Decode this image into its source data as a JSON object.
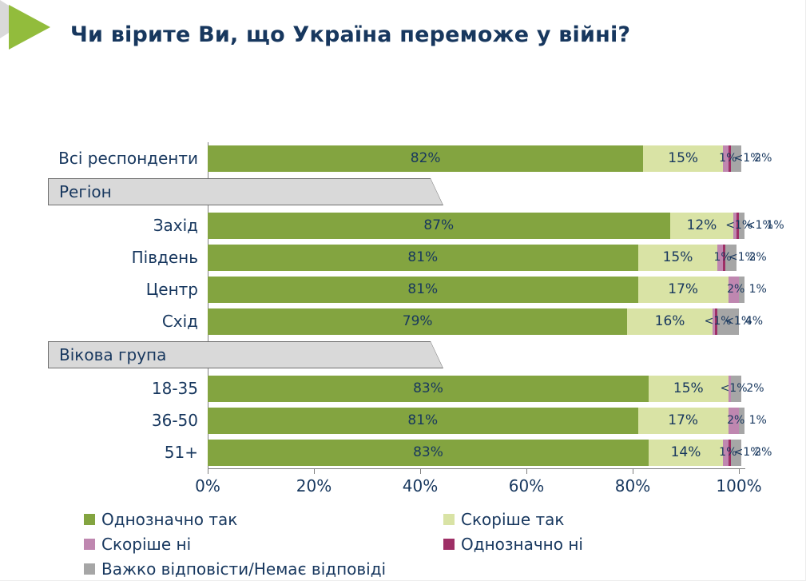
{
  "title": "Чи вірите Ви, що Україна переможе у війні?",
  "colors": {
    "title_text": "#17375e",
    "axis_line": "#7f7f7f",
    "group_box_fill": "#d9d9d9",
    "accent_arrow": "#92bc3c"
  },
  "chart_data": {
    "type": "bar",
    "orientation": "horizontal",
    "stacked": true,
    "xlabel": "",
    "ylabel": "",
    "xlim": [
      0,
      100
    ],
    "xticks": [
      "0%",
      "20%",
      "40%",
      "60%",
      "80%",
      "100%"
    ],
    "legend_position": "bottom",
    "series": [
      {
        "name": "Однозначно так",
        "color": "#83a440"
      },
      {
        "name": "Скоріше так",
        "color": "#d9e3a5"
      },
      {
        "name": "Скоріше ні",
        "color": "#bf87b0"
      },
      {
        "name": "Однозначно ні",
        "color": "#9e2f66"
      },
      {
        "name": "Важко відповісти/Немає відповіді",
        "color": "#a6a6a6"
      }
    ],
    "rows": [
      {
        "type": "bar",
        "label": "Всі респонденти",
        "values": [
          82,
          15,
          1,
          0.5,
          2
        ],
        "labels": [
          "82%",
          "15%",
          "1%",
          "<1%",
          "2%"
        ]
      },
      {
        "type": "group",
        "label": "Регіон"
      },
      {
        "type": "bar",
        "label": "Захід",
        "values": [
          87,
          12,
          0.5,
          0.5,
          1
        ],
        "labels": [
          "87%",
          "12%",
          "<1%",
          "<1%",
          "1%"
        ]
      },
      {
        "type": "bar",
        "label": "Південь",
        "values": [
          81,
          15,
          1,
          0.5,
          2
        ],
        "labels": [
          "81%",
          "15%",
          "1%",
          "<1%",
          "2%"
        ]
      },
      {
        "type": "bar",
        "label": "Центр",
        "values": [
          81,
          17,
          2,
          0,
          1
        ],
        "labels": [
          "81%",
          "17%",
          "2%",
          "",
          "1%"
        ]
      },
      {
        "type": "bar",
        "label": "Схід",
        "values": [
          79,
          16,
          0.5,
          0.5,
          4
        ],
        "labels": [
          "79%",
          "16%",
          "<1%",
          "<1%",
          "4%"
        ]
      },
      {
        "type": "group",
        "label": "Вікова група"
      },
      {
        "type": "bar",
        "label": "18-35",
        "values": [
          83,
          15,
          0.5,
          0,
          2
        ],
        "labels": [
          "83%",
          "15%",
          "<1%",
          "",
          "2%"
        ]
      },
      {
        "type": "bar",
        "label": "36-50",
        "values": [
          81,
          17,
          2,
          0,
          1
        ],
        "labels": [
          "81%",
          "17%",
          "2%",
          "",
          "1%"
        ]
      },
      {
        "type": "bar",
        "label": "51+",
        "values": [
          83,
          14,
          1,
          0.5,
          2
        ],
        "labels": [
          "83%",
          "14%",
          "1%",
          "<1%",
          "2%"
        ]
      }
    ]
  }
}
